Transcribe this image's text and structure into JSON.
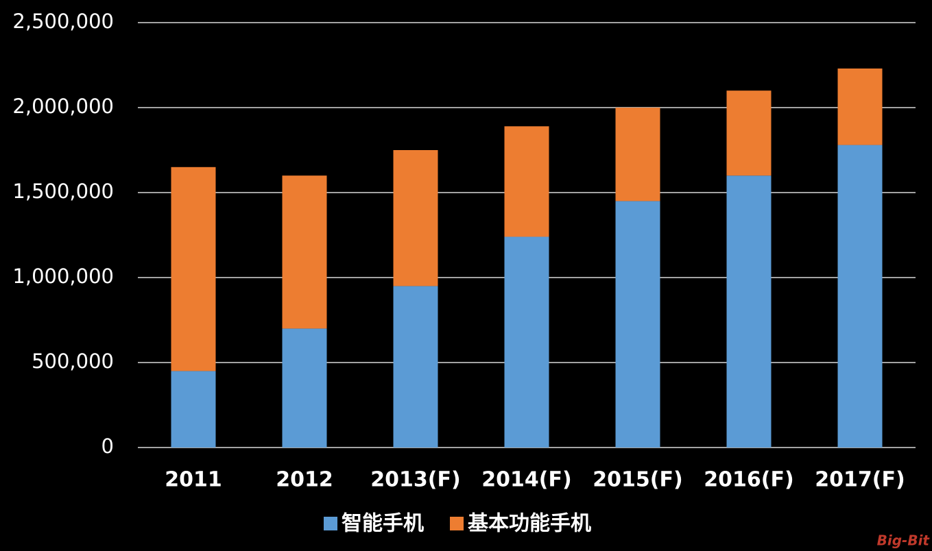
{
  "chart_data": {
    "type": "stacked_bar",
    "categories": [
      "2011",
      "2012",
      "2013(F)",
      "2014(F)",
      "2015(F)",
      "2016(F)",
      "2017(F)"
    ],
    "series": [
      {
        "name": "智能手机",
        "color": "#5b9bd5",
        "values": [
          450000,
          700000,
          950000,
          1240000,
          1450000,
          1600000,
          1780000
        ]
      },
      {
        "name": "基本功能手机",
        "color": "#ed7d31",
        "values": [
          1200000,
          900000,
          800000,
          650000,
          550000,
          500000,
          450000
        ]
      }
    ],
    "ylim": [
      0,
      2500000
    ],
    "yticks": [
      0,
      {
        "value": 500000,
        "label": "500,000"
      },
      {
        "value": 1000000,
        "label": "1,000,000"
      },
      {
        "value": 1500000,
        "label": "1,500,000"
      },
      {
        "value": 2000000,
        "label": "2,000,000"
      },
      {
        "value": 2500000,
        "label": "2,500,000"
      }
    ],
    "grid": true,
    "legend": "bottom",
    "watermark": "Big-Bit"
  }
}
